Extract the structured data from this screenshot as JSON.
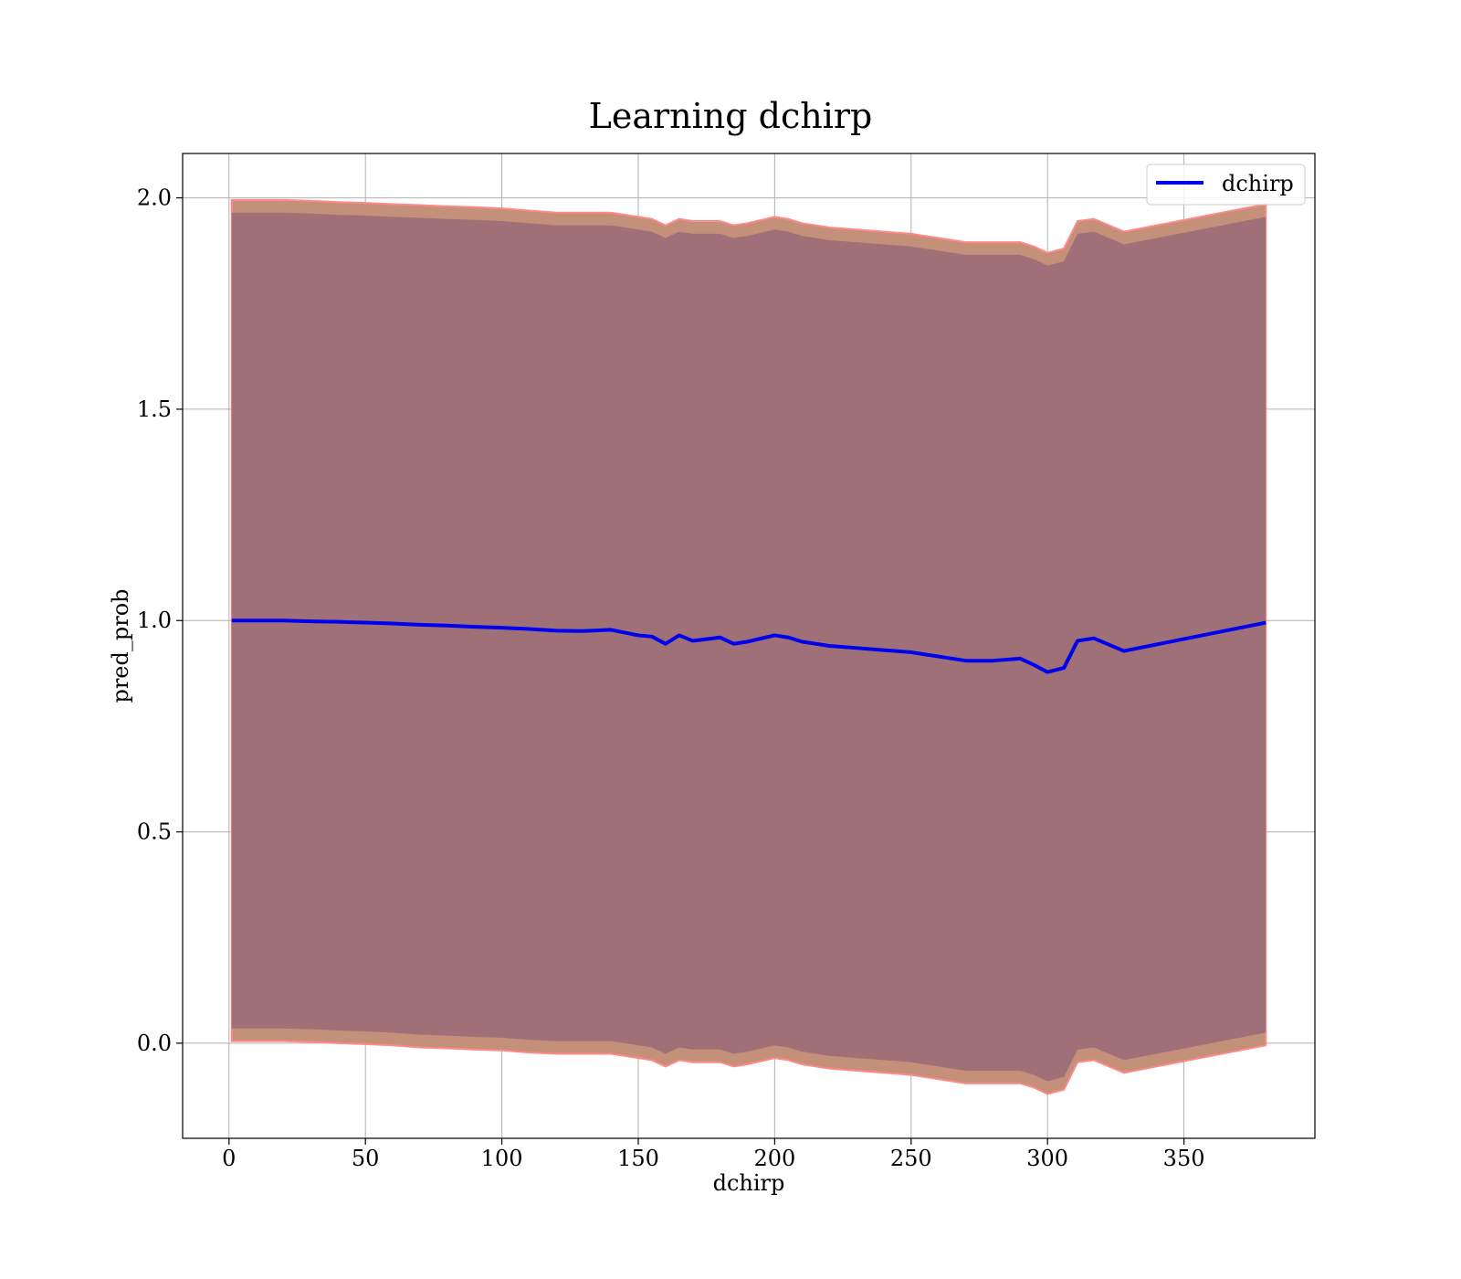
{
  "chart_data": {
    "type": "line",
    "title": "Learning dchirp",
    "xlabel": "dchirp",
    "ylabel": "pred_prob",
    "xlim": [
      -17,
      398
    ],
    "ylim": [
      -0.225,
      2.105
    ],
    "xticks": [
      0,
      50,
      100,
      150,
      200,
      250,
      300,
      350
    ],
    "yticks": [
      0.0,
      0.5,
      1.0,
      1.5,
      2.0
    ],
    "xtick_labels": [
      "0",
      "50",
      "100",
      "150",
      "200",
      "250",
      "300",
      "350"
    ],
    "ytick_labels": [
      "0.0",
      "0.5",
      "1.0",
      "1.5",
      "2.0"
    ],
    "grid": true,
    "legend": {
      "position": "top-right",
      "entries": [
        "dchirp"
      ]
    },
    "colors": {
      "line": "#0000ee",
      "outer_band": "#c4907a",
      "outer_band_edge": "#ff8888",
      "inner_band": "#a07078",
      "grid": "#b0b0b0"
    },
    "series": [
      {
        "name": "dchirp",
        "x": [
          1,
          10,
          20,
          30,
          40,
          50,
          60,
          70,
          80,
          90,
          100,
          110,
          120,
          130,
          140,
          150,
          155,
          160,
          165,
          170,
          180,
          185,
          190,
          200,
          205,
          210,
          220,
          230,
          240,
          250,
          260,
          270,
          280,
          290,
          295,
          300,
          306,
          311,
          317,
          328,
          380
        ],
        "y": [
          1.0,
          1.0,
          1.0,
          0.998,
          0.997,
          0.995,
          0.993,
          0.99,
          0.988,
          0.985,
          0.983,
          0.98,
          0.976,
          0.975,
          0.978,
          0.965,
          0.962,
          0.945,
          0.965,
          0.952,
          0.96,
          0.945,
          0.95,
          0.965,
          0.96,
          0.95,
          0.94,
          0.935,
          0.93,
          0.925,
          0.915,
          0.905,
          0.905,
          0.91,
          0.895,
          0.878,
          0.888,
          0.952,
          0.958,
          0.928,
          0.995
        ]
      }
    ],
    "bands": {
      "outer": {
        "upper": [
          1.995,
          1.995,
          1.995,
          1.993,
          1.99,
          1.988,
          1.985,
          1.983,
          1.98,
          1.978,
          1.975,
          1.97,
          1.965,
          1.965,
          1.965,
          1.955,
          1.95,
          1.935,
          1.95,
          1.945,
          1.945,
          1.935,
          1.94,
          1.955,
          1.95,
          1.94,
          1.93,
          1.925,
          1.92,
          1.915,
          1.905,
          1.895,
          1.895,
          1.895,
          1.885,
          1.87,
          1.88,
          1.945,
          1.95,
          1.92,
          1.985
        ],
        "lower": [
          0.005,
          0.005,
          0.005,
          0.003,
          0.0,
          -0.002,
          -0.005,
          -0.01,
          -0.012,
          -0.015,
          -0.017,
          -0.022,
          -0.025,
          -0.025,
          -0.025,
          -0.035,
          -0.04,
          -0.055,
          -0.04,
          -0.045,
          -0.045,
          -0.055,
          -0.05,
          -0.035,
          -0.04,
          -0.05,
          -0.06,
          -0.065,
          -0.07,
          -0.075,
          -0.085,
          -0.095,
          -0.095,
          -0.095,
          -0.105,
          -0.12,
          -0.11,
          -0.045,
          -0.04,
          -0.07,
          -0.005
        ]
      },
      "inner": {
        "upper": [
          1.965,
          1.965,
          1.965,
          1.963,
          1.96,
          1.958,
          1.955,
          1.953,
          1.95,
          1.948,
          1.945,
          1.94,
          1.935,
          1.935,
          1.935,
          1.925,
          1.92,
          1.905,
          1.92,
          1.915,
          1.915,
          1.905,
          1.91,
          1.925,
          1.92,
          1.91,
          1.9,
          1.895,
          1.89,
          1.885,
          1.875,
          1.865,
          1.865,
          1.865,
          1.855,
          1.84,
          1.85,
          1.915,
          1.92,
          1.89,
          1.955
        ],
        "lower": [
          0.035,
          0.035,
          0.035,
          0.033,
          0.03,
          0.028,
          0.025,
          0.02,
          0.018,
          0.015,
          0.013,
          0.008,
          0.005,
          0.005,
          0.005,
          -0.005,
          -0.01,
          -0.025,
          -0.01,
          -0.015,
          -0.015,
          -0.025,
          -0.02,
          -0.005,
          -0.01,
          -0.02,
          -0.03,
          -0.035,
          -0.04,
          -0.045,
          -0.055,
          -0.065,
          -0.065,
          -0.065,
          -0.075,
          -0.09,
          -0.08,
          -0.015,
          -0.01,
          -0.04,
          0.025
        ]
      }
    }
  }
}
